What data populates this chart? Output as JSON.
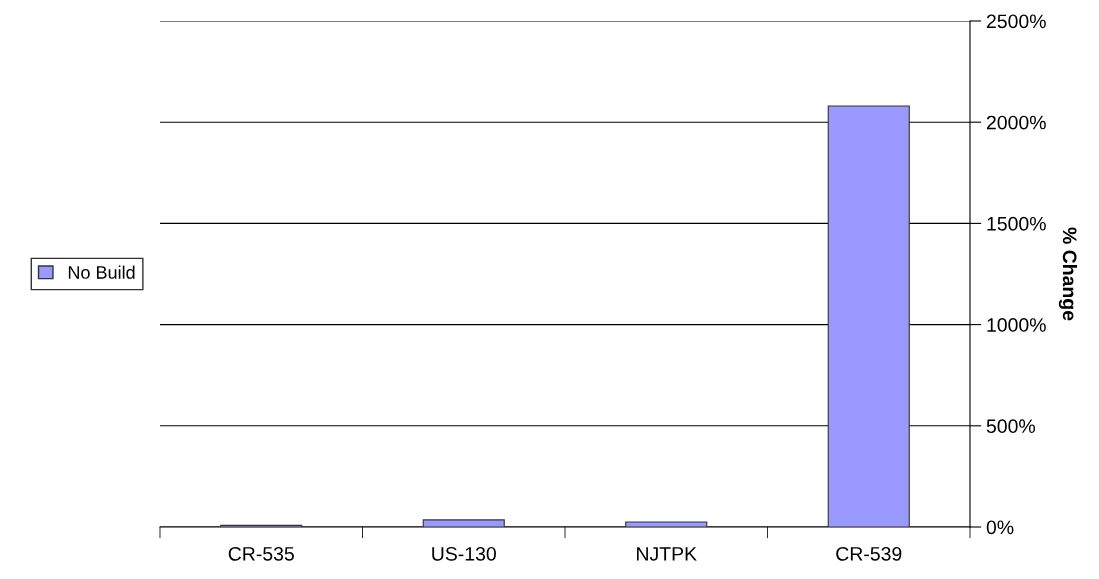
{
  "chart_data": {
    "type": "bar",
    "ylabel": "% Change",
    "categories": [
      "CR-535",
      "US-130",
      "NJTPK",
      "CR-539"
    ],
    "series": [
      {
        "name": "No Build",
        "color": "#9999ff",
        "values": [
          8,
          35,
          25,
          2080
        ]
      }
    ],
    "ylim": [
      0,
      2500
    ],
    "yticks": [
      {
        "value": 0,
        "label": "0%"
      },
      {
        "value": 500,
        "label": "500%"
      },
      {
        "value": 1000,
        "label": "1000%"
      },
      {
        "value": 1500,
        "label": "1500%"
      },
      {
        "value": 2000,
        "label": "2000%"
      },
      {
        "value": 2500,
        "label": "2500%"
      }
    ],
    "grid": "y",
    "legend": "left"
  }
}
